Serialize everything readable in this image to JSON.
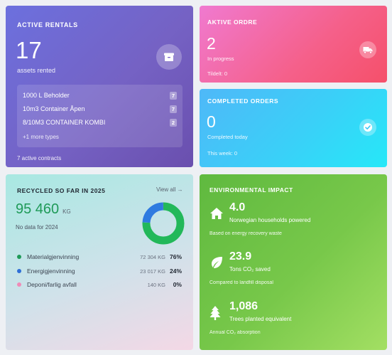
{
  "rentals": {
    "title": "ACTIVE RENTALS",
    "count": "17",
    "subtitle": "assets rented",
    "items": [
      {
        "name": "1000 L Beholder",
        "qty": "7"
      },
      {
        "name": "10m3 Container Åpen",
        "qty": "7"
      },
      {
        "name": "8/10M3 CONTAINER KOMBI",
        "qty": "2"
      }
    ],
    "more": "+1 more types",
    "footer": "7 active contracts"
  },
  "aktive": {
    "title": "AKTIVE ORDRE",
    "count": "2",
    "subtitle": "In progress",
    "footer": "Tildelt: 0"
  },
  "completed": {
    "title": "COMPLETED ORDERS",
    "count": "0",
    "subtitle": "Completed today",
    "footer": "This week: 0"
  },
  "recycled": {
    "title": "RECYCLED SO FAR IN 2025",
    "view_all": "View all →",
    "total": "95 460",
    "unit": "KG",
    "no_data": "No data for 2024",
    "rows": [
      {
        "name": "Materialgjenvinning",
        "amount": "72 304 KG",
        "pct": "76%",
        "color": "#1f9a58"
      },
      {
        "name": "Energigjenvinning",
        "amount": "23 017 KG",
        "pct": "24%",
        "color": "#2f6fd6"
      },
      {
        "name": "Deponi/farlig avfall",
        "amount": "140 KG",
        "pct": "0%",
        "color": "#f08bb8"
      }
    ],
    "donut": [
      {
        "label": "Materialgjenvinning",
        "fraction": 0.757,
        "color": "#22b85a"
      },
      {
        "label": "Energigjenvinning",
        "fraction": 0.241,
        "color": "#2f7be0"
      },
      {
        "label": "Deponi/farlig avfall",
        "fraction": 0.002,
        "color": "#f08bb8"
      }
    ]
  },
  "environment": {
    "title": "ENVIRONMENTAL IMPACT",
    "items": [
      {
        "icon": "house-icon",
        "value": "4.0",
        "desc": "Norwegian households powered",
        "note": "Based on energy recovery waste"
      },
      {
        "icon": "leaf-icon",
        "value": "23.9",
        "desc": "Tons CO₂ saved",
        "note": "Compared to landfill disposal"
      },
      {
        "icon": "tree-icon",
        "value": "1,086",
        "desc": "Trees planted equivalent",
        "note": "Annual CO₂ absorption"
      }
    ]
  }
}
